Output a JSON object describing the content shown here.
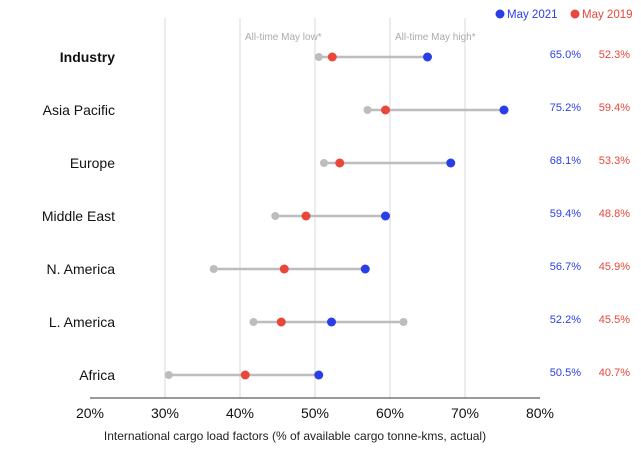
{
  "chart_data": {
    "type": "dumbbell",
    "xlabel": "International cargo load factors (% of available cargo tonne-kms, actual)",
    "x_ticks": [
      "20%",
      "30%",
      "40%",
      "50%",
      "60%",
      "70%",
      "80%"
    ],
    "xlim": [
      20,
      80
    ],
    "grid": true,
    "legend_position": "top-right",
    "legend": [
      {
        "name": "May 2021",
        "color": "#2a3ee8"
      },
      {
        "name": "May 2019",
        "color": "#e8473a"
      }
    ],
    "ref_lines": [
      {
        "label": "All-time May low*",
        "value": 40
      },
      {
        "label": "All-time May high*",
        "value": 60
      }
    ],
    "regions": [
      {
        "name": "Industry",
        "bold": true,
        "min": 50.5,
        "max": 65.0,
        "may2019": 52.3,
        "may2021": 65.0,
        "label_2021": "65.0%",
        "label_2019": "52.3%"
      },
      {
        "name": "Asia Pacific",
        "bold": false,
        "min": 57.0,
        "max": 75.2,
        "may2019": 59.4,
        "may2021": 75.2,
        "label_2021": "75.2%",
        "label_2019": "59.4%"
      },
      {
        "name": "Europe",
        "bold": false,
        "min": 51.2,
        "max": 68.1,
        "may2019": 53.3,
        "may2021": 68.1,
        "label_2021": "68.1%",
        "label_2019": "53.3%"
      },
      {
        "name": "Middle East",
        "bold": false,
        "min": 44.7,
        "max": 59.4,
        "may2019": 48.8,
        "may2021": 59.4,
        "label_2021": "59.4%",
        "label_2019": "48.8%"
      },
      {
        "name": "N. America",
        "bold": false,
        "min": 36.5,
        "max": 56.7,
        "may2019": 45.9,
        "may2021": 56.7,
        "label_2021": "56.7%",
        "label_2019": "45.9%"
      },
      {
        "name": "L. America",
        "bold": false,
        "min": 41.8,
        "max": 61.8,
        "may2019": 45.5,
        "may2021": 52.2,
        "label_2021": "52.2%",
        "label_2019": "45.5%"
      },
      {
        "name": "Africa",
        "bold": false,
        "min": 30.5,
        "max": 50.5,
        "may2019": 40.7,
        "may2021": 50.5,
        "label_2021": "50.5%",
        "label_2019": "40.7%"
      }
    ],
    "colors": {
      "may2021": "#2a3ee8",
      "may2019": "#e8473a",
      "range": "#bdbdbd",
      "grid": "#d9d9d9"
    }
  }
}
